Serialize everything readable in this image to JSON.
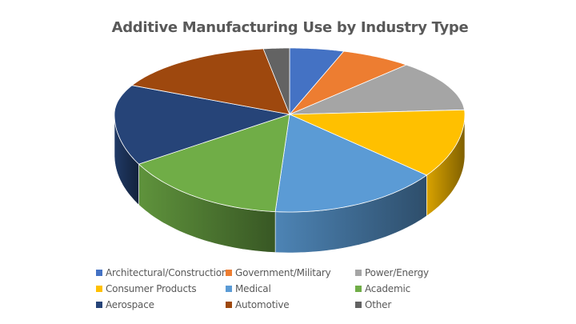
{
  "chart_data": {
    "type": "pie",
    "subtype": "3d-pie",
    "title": "Additive Manufacturing Use by Industry Type",
    "categories": [
      "Architectural/Construction",
      "Government/Military",
      "Power/Energy",
      "Consumer Products",
      "Medical",
      "Academic",
      "Aerospace",
      "Automotive",
      "Other"
    ],
    "values": [
      5,
      6.6,
      12.3,
      11.8,
      15.6,
      15.2,
      15.7,
      15.4,
      2.4
    ],
    "unit": "percent (estimated from slice angles)",
    "colors": [
      "#4472C4",
      "#ED7D31",
      "#A5A5A5",
      "#FFC000",
      "#5B9BD5",
      "#70AD47",
      "#264478",
      "#9E480E",
      "#636363"
    ],
    "legend_position": "bottom",
    "start_angle_deg": 0,
    "direction": "clockwise"
  },
  "legend": {
    "items": [
      {
        "label": "Architectural/Construction",
        "color": "#4472C4"
      },
      {
        "label": "Government/Military",
        "color": "#ED7D31"
      },
      {
        "label": "Power/Energy",
        "color": "#A5A5A5"
      },
      {
        "label": "Consumer Products",
        "color": "#FFC000"
      },
      {
        "label": "Medical",
        "color": "#5B9BD5"
      },
      {
        "label": "Academic",
        "color": "#70AD47"
      },
      {
        "label": "Aerospace",
        "color": "#264478"
      },
      {
        "label": "Automotive",
        "color": "#9E480E"
      },
      {
        "label": "Other",
        "color": "#636363"
      }
    ]
  }
}
